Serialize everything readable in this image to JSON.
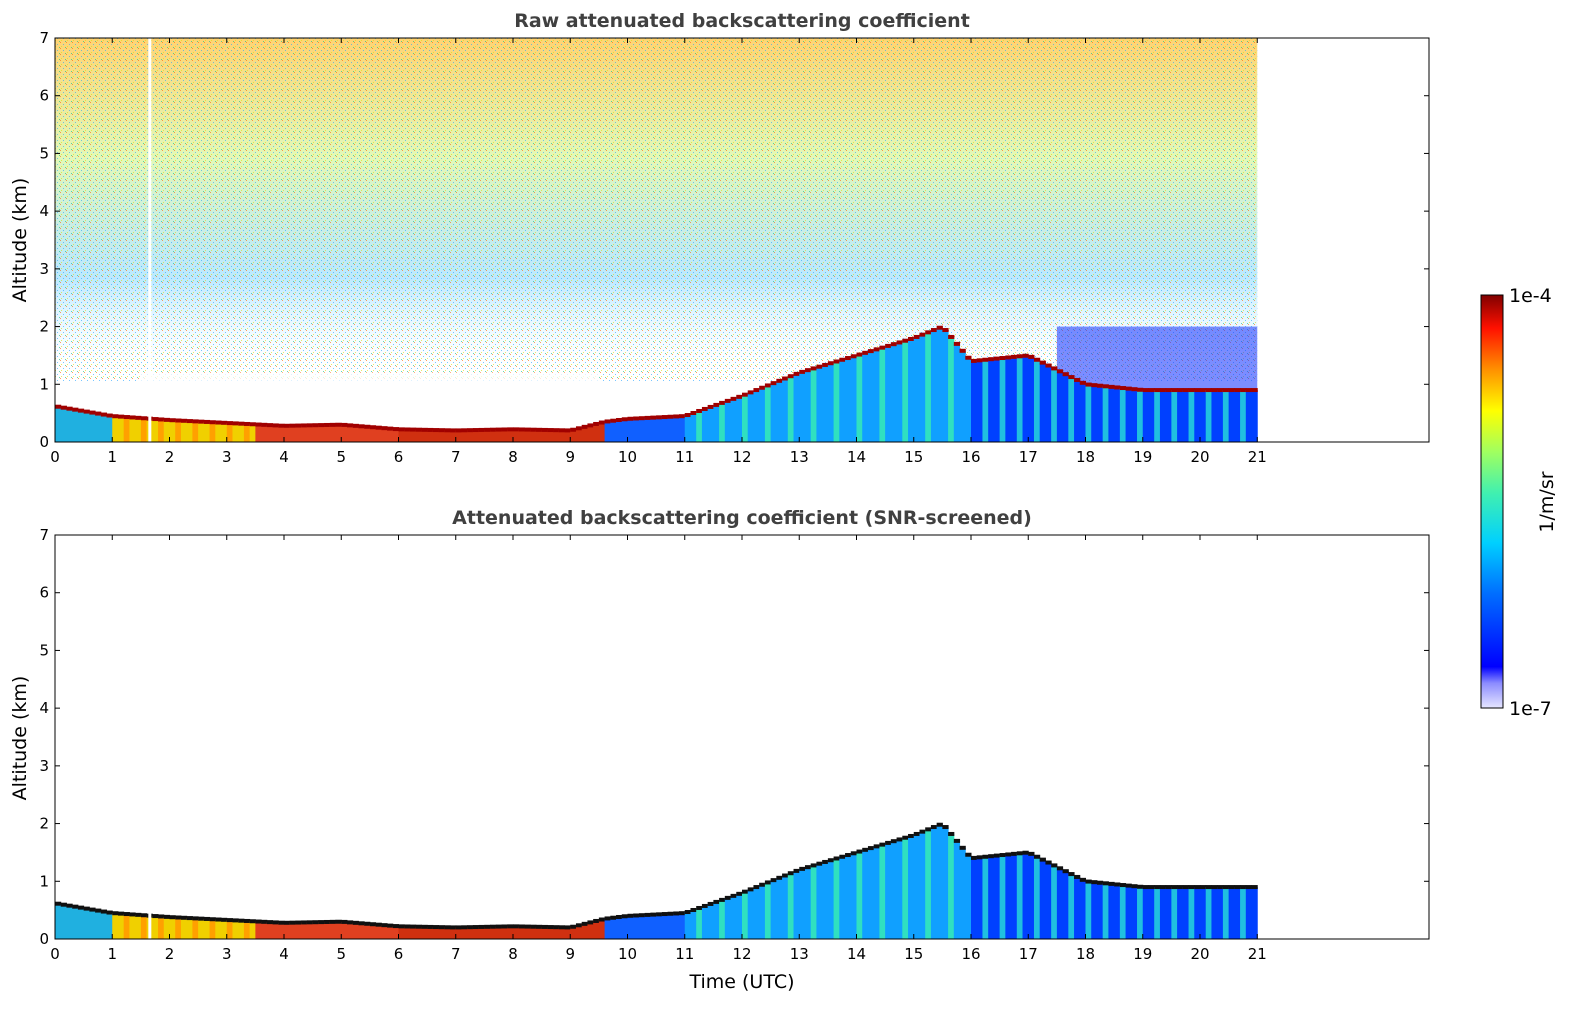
{
  "chart_data": [
    {
      "type": "heatmap",
      "title": "Raw attenuated backscattering coefficient",
      "xlabel": "",
      "ylabel": "Altitude (km)",
      "xlim": [
        0,
        24
      ],
      "ylim": [
        0,
        7
      ],
      "x_ticks": [
        "0",
        "1",
        "2",
        "3",
        "4",
        "5",
        "6",
        "7",
        "8",
        "9",
        "10",
        "11",
        "12",
        "13",
        "14",
        "15",
        "16",
        "17",
        "18",
        "19",
        "20",
        "21"
      ],
      "y_ticks": [
        "0",
        "1",
        "2",
        "3",
        "4",
        "5",
        "6",
        "7"
      ],
      "data_extent_hours": [
        0,
        21
      ],
      "aerosol_layer_top_km": {
        "time_h": [
          0,
          1,
          2,
          3,
          4,
          5,
          6,
          7,
          8,
          9,
          9.6,
          10,
          11,
          12,
          13,
          14,
          15,
          15.5,
          16,
          17,
          18,
          19,
          20,
          21
        ],
        "height_km": [
          0.62,
          0.45,
          0.38,
          0.33,
          0.28,
          0.3,
          0.22,
          0.2,
          0.22,
          0.2,
          0.35,
          0.4,
          0.45,
          0.8,
          1.2,
          1.5,
          1.8,
          2.0,
          1.4,
          1.5,
          1.0,
          0.9,
          0.9,
          0.9
        ]
      }
    },
    {
      "type": "heatmap",
      "title": "Attenuated backscattering coefficient (SNR-screened)",
      "xlabel": "Time (UTC)",
      "ylabel": "Altitude (km)",
      "xlim": [
        0,
        24
      ],
      "ylim": [
        0,
        7
      ],
      "x_ticks": [
        "0",
        "1",
        "2",
        "3",
        "4",
        "5",
        "6",
        "7",
        "8",
        "9",
        "10",
        "11",
        "12",
        "13",
        "14",
        "15",
        "16",
        "17",
        "18",
        "19",
        "20",
        "21"
      ],
      "y_ticks": [
        "0",
        "1",
        "2",
        "3",
        "4",
        "5",
        "6",
        "7"
      ],
      "data_extent_hours": [
        0,
        21
      ]
    }
  ],
  "colorbar": {
    "label": "1/m/sr",
    "max_label": "1e-4",
    "min_label": "1e-7",
    "scale": "log",
    "colormap": [
      "#e6e6ff",
      "#0000ff",
      "#0080ff",
      "#00e0e0",
      "#80ff80",
      "#ffff00",
      "#ff8000",
      "#ff0000",
      "#800000"
    ]
  }
}
